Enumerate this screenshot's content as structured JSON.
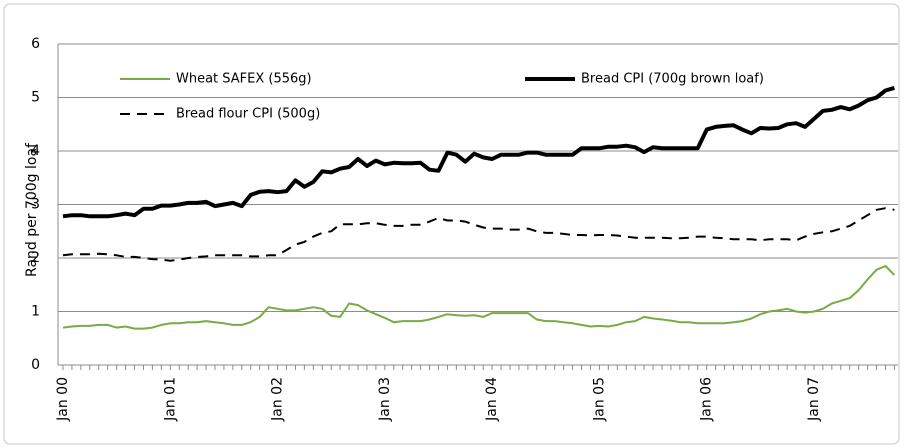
{
  "chart_data": {
    "type": "line",
    "y_label": "Rand per 700g loaf",
    "categories": [
      "Jan 00",
      null,
      null,
      null,
      null,
      null,
      null,
      null,
      null,
      null,
      null,
      null,
      "Jan 01",
      null,
      null,
      null,
      null,
      null,
      null,
      null,
      null,
      null,
      null,
      null,
      "Jan 02",
      null,
      null,
      null,
      null,
      null,
      null,
      null,
      null,
      null,
      null,
      null,
      "Jan 03",
      null,
      null,
      null,
      null,
      null,
      null,
      null,
      null,
      null,
      null,
      null,
      "Jan 04",
      null,
      null,
      null,
      null,
      null,
      null,
      null,
      null,
      null,
      null,
      null,
      "Jan 05",
      null,
      null,
      null,
      null,
      null,
      null,
      null,
      null,
      null,
      null,
      null,
      "Jan 06",
      null,
      null,
      null,
      null,
      null,
      null,
      null,
      null,
      null,
      null,
      null,
      "Jan 07",
      null,
      null,
      null,
      null,
      null,
      null,
      null,
      null,
      null
    ],
    "series": [
      {
        "name": "Wheat SAFEX (556g)",
        "color": "#77ab43",
        "line_style": "solid",
        "values": [
          0.7,
          0.72,
          0.73,
          0.73,
          0.75,
          0.75,
          0.7,
          0.72,
          0.68,
          0.68,
          0.7,
          0.75,
          0.78,
          0.78,
          0.8,
          0.8,
          0.82,
          0.8,
          0.78,
          0.75,
          0.75,
          0.8,
          0.9,
          1.08,
          1.05,
          1.02,
          1.02,
          1.05,
          1.08,
          1.05,
          0.92,
          0.9,
          1.15,
          1.12,
          1.02,
          0.95,
          0.88,
          0.8,
          0.82,
          0.82,
          0.82,
          0.85,
          0.9,
          0.95,
          0.93,
          0.92,
          0.93,
          0.9,
          0.97,
          0.97,
          0.97,
          0.97,
          0.97,
          0.85,
          0.82,
          0.82,
          0.8,
          0.78,
          0.75,
          0.72,
          0.73,
          0.72,
          0.75,
          0.8,
          0.82,
          0.9,
          0.87,
          0.85,
          0.83,
          0.8,
          0.8,
          0.78,
          0.78,
          0.78,
          0.78,
          0.8,
          0.82,
          0.87,
          0.95,
          1.0,
          1.02,
          1.05,
          1.0,
          0.98,
          1.0,
          1.05,
          1.15,
          1.2,
          1.25,
          1.4,
          1.6,
          1.78,
          1.85,
          1.68
        ]
      },
      {
        "name": "Bread CPI (700g brown loaf)",
        "color": "#000000",
        "line_style": "bold",
        "values": [
          2.78,
          2.8,
          2.8,
          2.78,
          2.78,
          2.78,
          2.8,
          2.83,
          2.8,
          2.92,
          2.92,
          2.98,
          2.98,
          3.0,
          3.03,
          3.03,
          3.05,
          2.97,
          3.0,
          3.03,
          2.97,
          3.18,
          3.24,
          3.25,
          3.23,
          3.25,
          3.45,
          3.33,
          3.42,
          3.62,
          3.6,
          3.67,
          3.7,
          3.85,
          3.72,
          3.82,
          3.75,
          3.78,
          3.77,
          3.77,
          3.78,
          3.65,
          3.63,
          3.97,
          3.93,
          3.8,
          3.95,
          3.88,
          3.85,
          3.93,
          3.93,
          3.93,
          3.97,
          3.97,
          3.93,
          3.93,
          3.93,
          3.93,
          4.05,
          4.05,
          4.05,
          4.08,
          4.08,
          4.1,
          4.07,
          3.98,
          4.07,
          4.05,
          4.05,
          4.05,
          4.05,
          4.05,
          4.4,
          4.45,
          4.47,
          4.48,
          4.4,
          4.33,
          4.43,
          4.42,
          4.43,
          4.5,
          4.52,
          4.45,
          4.6,
          4.75,
          4.77,
          4.82,
          4.78,
          4.85,
          4.95,
          5.0,
          5.13,
          5.18
        ]
      },
      {
        "name": "Bread flour CPI (500g)",
        "color": "#000000",
        "line_style": "dashed",
        "values": [
          2.05,
          2.07,
          2.07,
          2.07,
          2.08,
          2.07,
          2.05,
          2.02,
          2.02,
          2.0,
          1.98,
          1.97,
          1.95,
          1.97,
          2.0,
          2.02,
          2.03,
          2.05,
          2.05,
          2.05,
          2.05,
          2.03,
          2.03,
          2.05,
          2.05,
          2.15,
          2.25,
          2.3,
          2.4,
          2.47,
          2.5,
          2.63,
          2.63,
          2.63,
          2.65,
          2.65,
          2.62,
          2.6,
          2.6,
          2.62,
          2.62,
          2.68,
          2.75,
          2.7,
          2.7,
          2.68,
          2.62,
          2.57,
          2.55,
          2.55,
          2.53,
          2.53,
          2.55,
          2.5,
          2.47,
          2.47,
          2.45,
          2.43,
          2.43,
          2.42,
          2.43,
          2.43,
          2.42,
          2.4,
          2.38,
          2.38,
          2.38,
          2.38,
          2.37,
          2.37,
          2.38,
          2.4,
          2.4,
          2.38,
          2.37,
          2.35,
          2.35,
          2.35,
          2.33,
          2.35,
          2.35,
          2.35,
          2.33,
          2.4,
          2.45,
          2.48,
          2.5,
          2.55,
          2.6,
          2.7,
          2.8,
          2.9,
          2.93,
          2.9
        ]
      }
    ],
    "ylim": [
      0,
      6
    ],
    "yticks": [
      0,
      1,
      2,
      3,
      4,
      5,
      6
    ],
    "grid": true,
    "legend": "top"
  }
}
